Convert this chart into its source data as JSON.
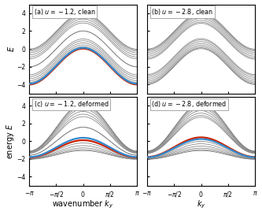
{
  "title_a": "(a) $u=-1.2$, clean",
  "title_b": "(b) $u=-2.8$, clean",
  "title_c": "(c) $u=-1.2$, deformed",
  "title_d": "(d) $u=-2.8$, deformed",
  "xlabel_bottom_left": "wavenumber $k_y$",
  "xlabel_bottom_right": "$k_y$",
  "ylabel_top_left": "$E$",
  "ylabel_bottom_left": "energy $E$",
  "ylim": [
    -5.0,
    5.0
  ],
  "yticks": [
    -4,
    -2,
    0,
    2,
    4
  ],
  "bulk_color": "#808080",
  "edge_red": "#cc2200",
  "edge_blue": "#3388cc",
  "bulk_lw": 0.55,
  "edge_lw": 1.6,
  "n_bands": 16,
  "figsize": [
    3.33,
    2.73
  ],
  "dpi": 100,
  "title_fontsize": 5.8,
  "label_fontsize": 7.0,
  "tick_fontsize": 5.5
}
